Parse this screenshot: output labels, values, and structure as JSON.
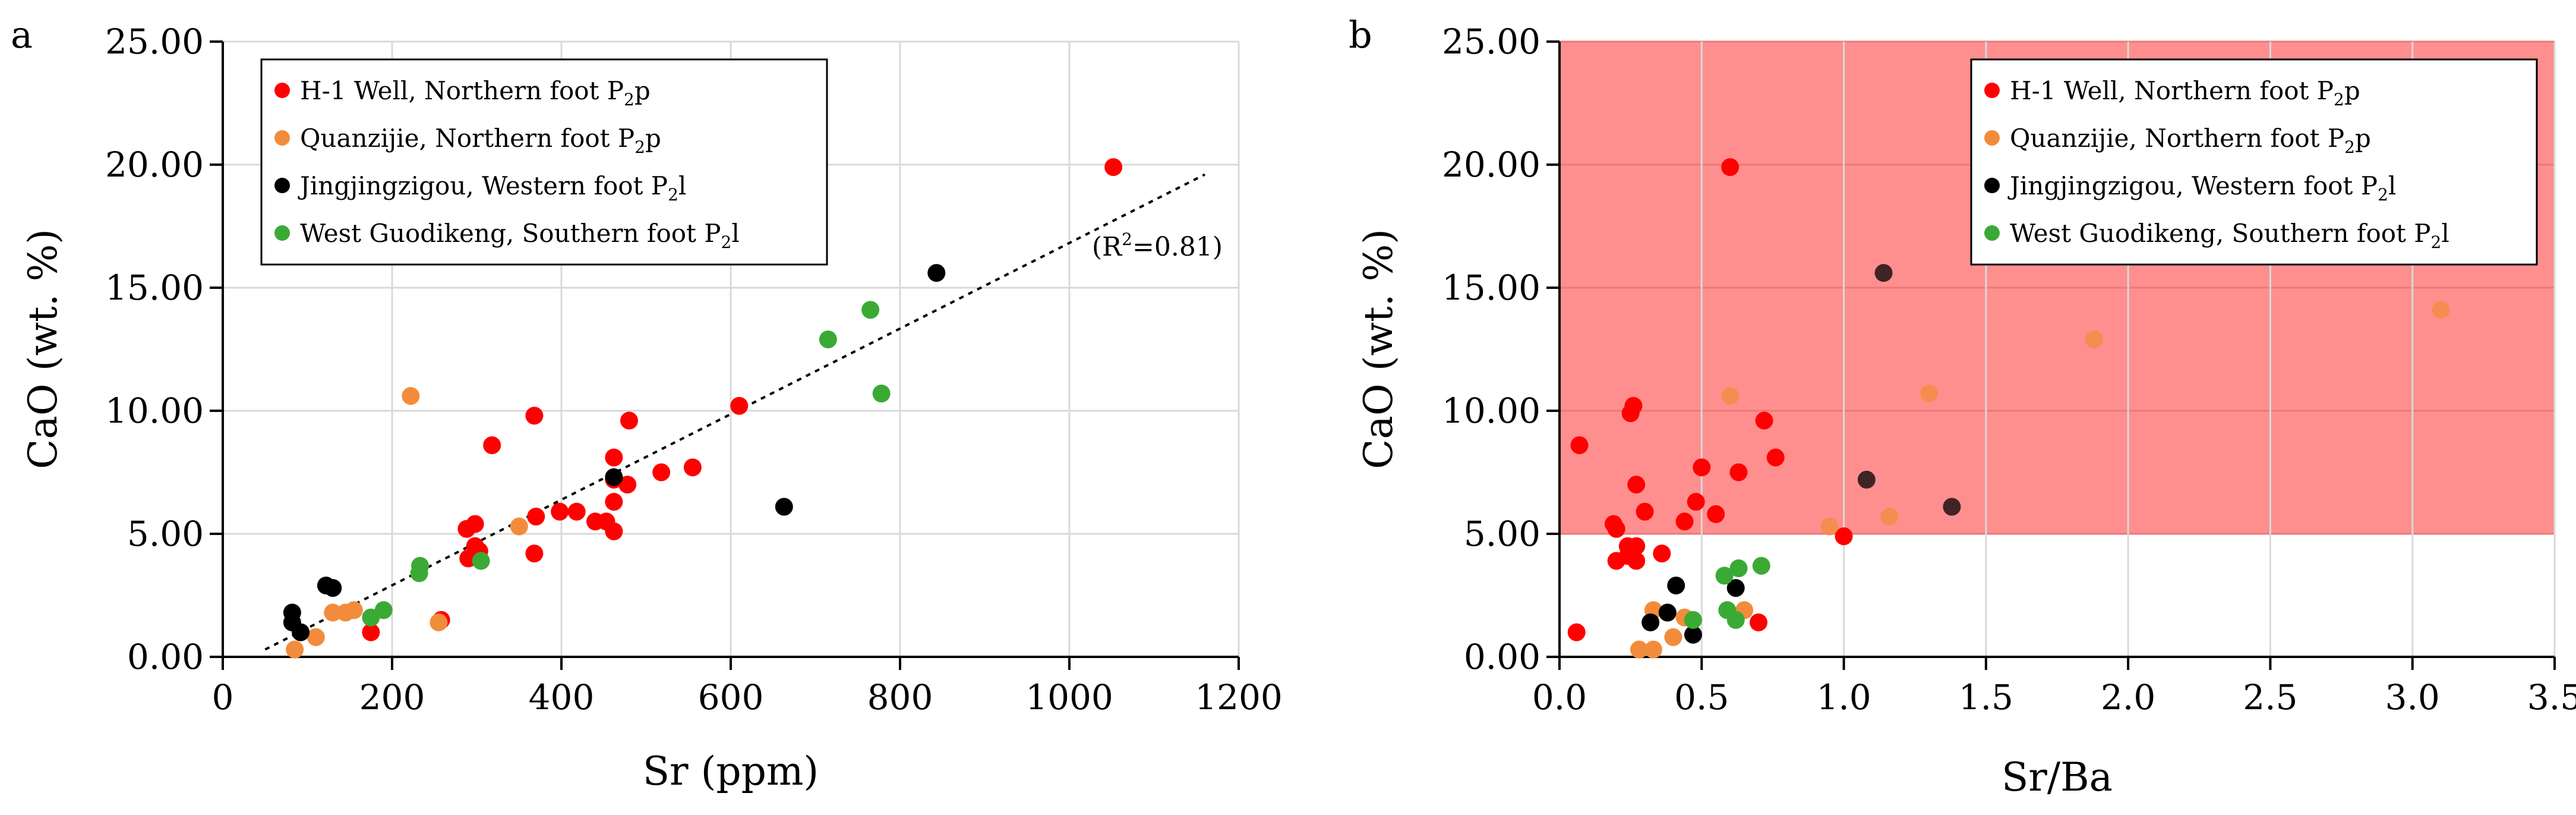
{
  "chart_data": [
    {
      "panel_label": "a",
      "type": "scatter",
      "xlabel": "Sr (ppm)",
      "ylabel": "CaO (wt. %)",
      "xlim": [
        0,
        1200
      ],
      "ylim": [
        0,
        25
      ],
      "xticks": [
        "0",
        "200",
        "400",
        "600",
        "800",
        "1000",
        "1200"
      ],
      "yticks": [
        "0.00",
        "5.00",
        "10.00",
        "15.00",
        "20.00",
        "25.00"
      ],
      "legend_position": "top-left",
      "legend": [
        {
          "text": "H-1 Well, Northern foot P",
          "sub": "2",
          "end": "p"
        },
        {
          "text": "Quanzijie, Northern foot P",
          "sub": "2",
          "end": "p"
        },
        {
          "text": "Jingjingzigou, Western foot P",
          "sub": "2",
          "end": "l"
        },
        {
          "text": "West Guodikeng, Southern foot P",
          "sub": "2",
          "end": "l"
        }
      ],
      "annotation": {
        "pre": "(R",
        "sup": "2",
        "post": "=0.81)"
      },
      "trendline": {
        "x": [
          50,
          1160
        ],
        "y": [
          0.3,
          19.6
        ],
        "style": "dotted"
      },
      "series": [
        {
          "name": "H-1 Well, Northern foot P2p",
          "color": "#ff0000",
          "points": [
            [
              1052,
              19.9
            ],
            [
              610,
              10.2
            ],
            [
              368,
              9.8
            ],
            [
              480,
              9.6
            ],
            [
              318,
              8.6
            ],
            [
              462,
              8.1
            ],
            [
              555,
              7.7
            ],
            [
              518,
              7.5
            ],
            [
              462,
              7.2
            ],
            [
              478,
              7.0
            ],
            [
              462,
              6.3
            ],
            [
              370,
              5.7
            ],
            [
              398,
              5.9
            ],
            [
              418,
              5.9
            ],
            [
              440,
              5.5
            ],
            [
              453,
              5.5
            ],
            [
              462,
              5.1
            ],
            [
              288,
              5.2
            ],
            [
              298,
              5.4
            ],
            [
              298,
              4.5
            ],
            [
              303,
              4.3
            ],
            [
              290,
              4.0
            ],
            [
              368,
              4.2
            ],
            [
              258,
              1.5
            ],
            [
              175,
              1.0
            ]
          ]
        },
        {
          "name": "Quanzijie, Northern foot P2p",
          "color": "#f28c3c",
          "points": [
            [
              222,
              10.6
            ],
            [
              350,
              5.3
            ],
            [
              130,
              1.8
            ],
            [
              145,
              1.8
            ],
            [
              155,
              1.9
            ],
            [
              110,
              0.8
            ],
            [
              85,
              0.3
            ],
            [
              255,
              1.4
            ]
          ]
        },
        {
          "name": "Jingjingzigou, Western foot P2l",
          "color": "#000000",
          "points": [
            [
              843,
              15.6
            ],
            [
              663,
              6.1
            ],
            [
              462,
              7.3
            ],
            [
              122,
              2.9
            ],
            [
              130,
              2.8
            ],
            [
              82,
              1.8
            ],
            [
              82,
              1.4
            ],
            [
              92,
              1.0
            ]
          ]
        },
        {
          "name": "West Guodikeng, Southern foot P2l",
          "color": "#3aaa35",
          "points": [
            [
              765,
              14.1
            ],
            [
              715,
              12.9
            ],
            [
              778,
              10.7
            ],
            [
              233,
              3.7
            ],
            [
              232,
              3.4
            ],
            [
              305,
              3.9
            ],
            [
              190,
              1.9
            ],
            [
              175,
              1.6
            ]
          ]
        }
      ]
    },
    {
      "panel_label": "b",
      "type": "scatter",
      "xlabel": "Sr/Ba",
      "ylabel": "CaO (wt. %)",
      "xlim": [
        0,
        3.5
      ],
      "ylim": [
        0,
        25
      ],
      "xticks": [
        "0.0",
        "0.5",
        "1.0",
        "1.5",
        "2.0",
        "2.5",
        "3.0",
        "3.5"
      ],
      "yticks": [
        "0.00",
        "5.00",
        "10.00",
        "15.00",
        "20.00",
        "25.00"
      ],
      "legend_position": "top-right",
      "legend": [
        {
          "text": "H-1  Well, Northern foot P",
          "sub": "2",
          "end": "p"
        },
        {
          "text": "Quanzijie, Northern foot P",
          "sub": "2",
          "end": "p"
        },
        {
          "text": "Jingjingzigou, Western foot P",
          "sub": "2",
          "end": "l"
        },
        {
          "text": "West Guodikeng, Southern foot P",
          "sub": "2",
          "end": "l"
        }
      ],
      "shaded_region": {
        "x": [
          0,
          3.5
        ],
        "y": [
          5,
          25
        ],
        "color": "#ff8f8f"
      },
      "series": [
        {
          "name": "H-1 Well, Northern foot P2p",
          "color": "#ff0000",
          "points": [
            [
              0.6,
              19.9
            ],
            [
              0.26,
              10.2
            ],
            [
              0.25,
              9.9
            ],
            [
              0.72,
              9.6
            ],
            [
              0.07,
              8.6
            ],
            [
              0.76,
              8.1
            ],
            [
              0.5,
              7.7
            ],
            [
              0.63,
              7.5
            ],
            [
              0.27,
              7.0
            ],
            [
              0.48,
              6.3
            ],
            [
              0.3,
              5.9
            ],
            [
              0.55,
              5.8
            ],
            [
              0.44,
              5.5
            ],
            [
              0.19,
              5.4
            ],
            [
              0.2,
              5.2
            ],
            [
              1.0,
              4.9
            ],
            [
              0.24,
              4.5
            ],
            [
              0.27,
              4.5
            ],
            [
              0.36,
              4.2
            ],
            [
              0.2,
              3.9
            ],
            [
              0.27,
              3.9
            ],
            [
              0.24,
              4.1
            ],
            [
              0.06,
              1.0
            ],
            [
              0.7,
              1.4
            ]
          ]
        },
        {
          "name": "Quanzijie, Northern foot P2p",
          "color": "#f28c3c",
          "points": [
            [
              3.1,
              14.1
            ],
            [
              1.88,
              12.9
            ],
            [
              1.3,
              10.7
            ],
            [
              0.6,
              10.6
            ],
            [
              1.16,
              5.7
            ],
            [
              0.95,
              5.3
            ],
            [
              0.33,
              1.9
            ],
            [
              0.44,
              1.6
            ],
            [
              0.65,
              1.9
            ],
            [
              0.4,
              0.8
            ],
            [
              0.28,
              0.3
            ],
            [
              0.33,
              0.3
            ]
          ]
        },
        {
          "name": "Jingjingzigou, Western foot P2l",
          "color": "#000000",
          "points": [
            [
              1.14,
              15.6
            ],
            [
              1.08,
              7.2
            ],
            [
              1.38,
              6.1
            ],
            [
              0.41,
              2.9
            ],
            [
              0.62,
              2.8
            ],
            [
              0.38,
              1.8
            ],
            [
              0.32,
              1.4
            ],
            [
              0.47,
              0.9
            ]
          ]
        },
        {
          "name": "West Guodikeng, Southern foot P2l",
          "color": "#3aaa35",
          "points": [
            [
              0.71,
              3.7
            ],
            [
              0.63,
              3.6
            ],
            [
              0.58,
              3.3
            ],
            [
              0.59,
              1.9
            ],
            [
              0.62,
              1.5
            ],
            [
              0.47,
              1.5
            ]
          ]
        }
      ]
    }
  ]
}
